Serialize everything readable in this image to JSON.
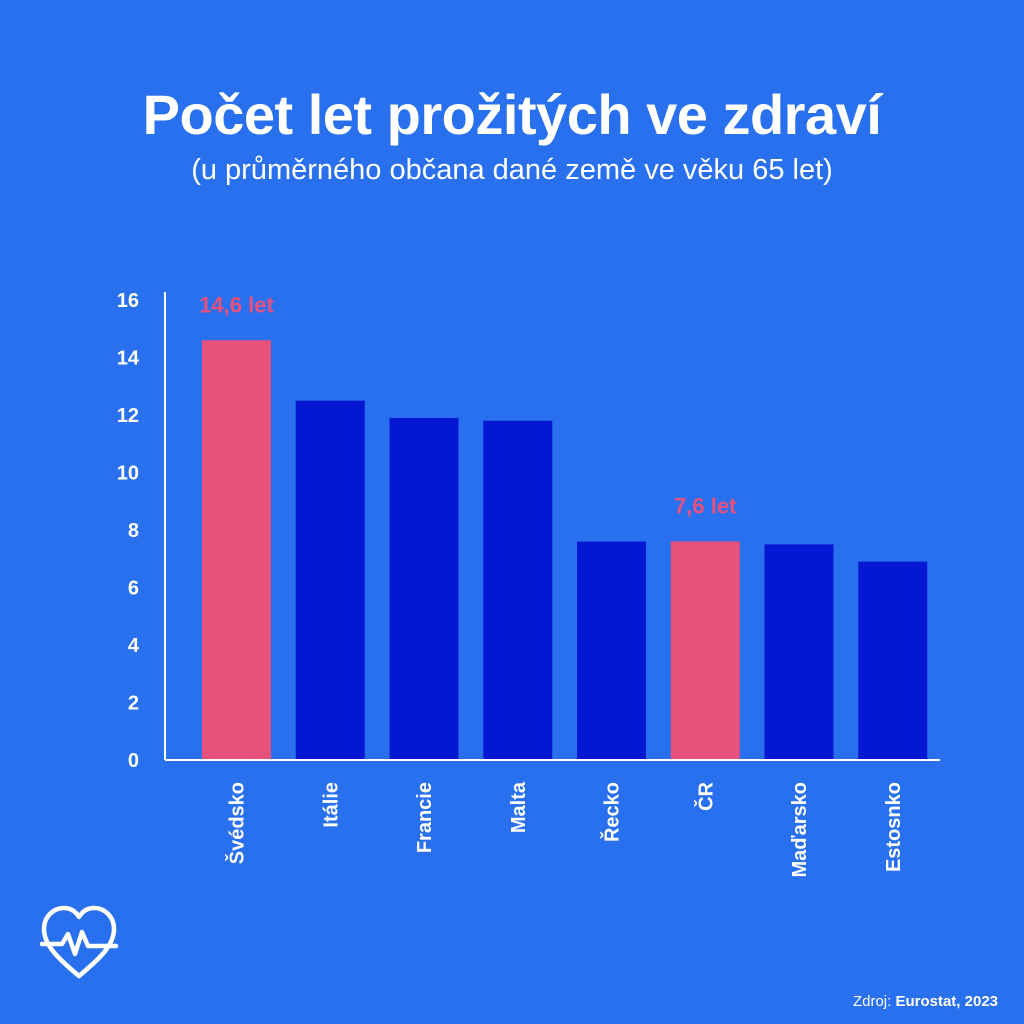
{
  "header": {
    "title": "Počet let prožitých ve zdraví",
    "subtitle": "(u průměrného občana dané země ve věku 65 let)"
  },
  "colors": {
    "background": "#2870EE",
    "bar": "#0417D2",
    "highlight": "#E8517B",
    "text": "#FFFFFF"
  },
  "chart_data": {
    "type": "bar",
    "title": "Počet let prožitých ve zdraví",
    "subtitle": "(u průměrného občana dané země ve věku 65 let)",
    "categories": [
      "Švédsko",
      "Itálie",
      "Francie",
      "Malta",
      "Řecko",
      "ČR",
      "Maďarsko",
      "Estosnko"
    ],
    "values": [
      14.6,
      12.5,
      11.9,
      11.8,
      7.6,
      7.6,
      7.5,
      6.9
    ],
    "highlighted": [
      "Švédsko",
      "ČR"
    ],
    "annotations": [
      {
        "category": "Švédsko",
        "text": "14,6 let"
      },
      {
        "category": "ČR",
        "text": "7,6 let"
      }
    ],
    "yticks": [
      "0",
      "2",
      "4",
      "6",
      "8",
      "10",
      "12",
      "14",
      "16"
    ],
    "ylim": [
      0,
      16
    ],
    "grid": false,
    "xlabel": "",
    "ylabel": ""
  },
  "footer": {
    "source_label": "Zdroj:",
    "source_value": "Eurostat, 2023",
    "logo_icon": "heart-pulse-icon"
  }
}
